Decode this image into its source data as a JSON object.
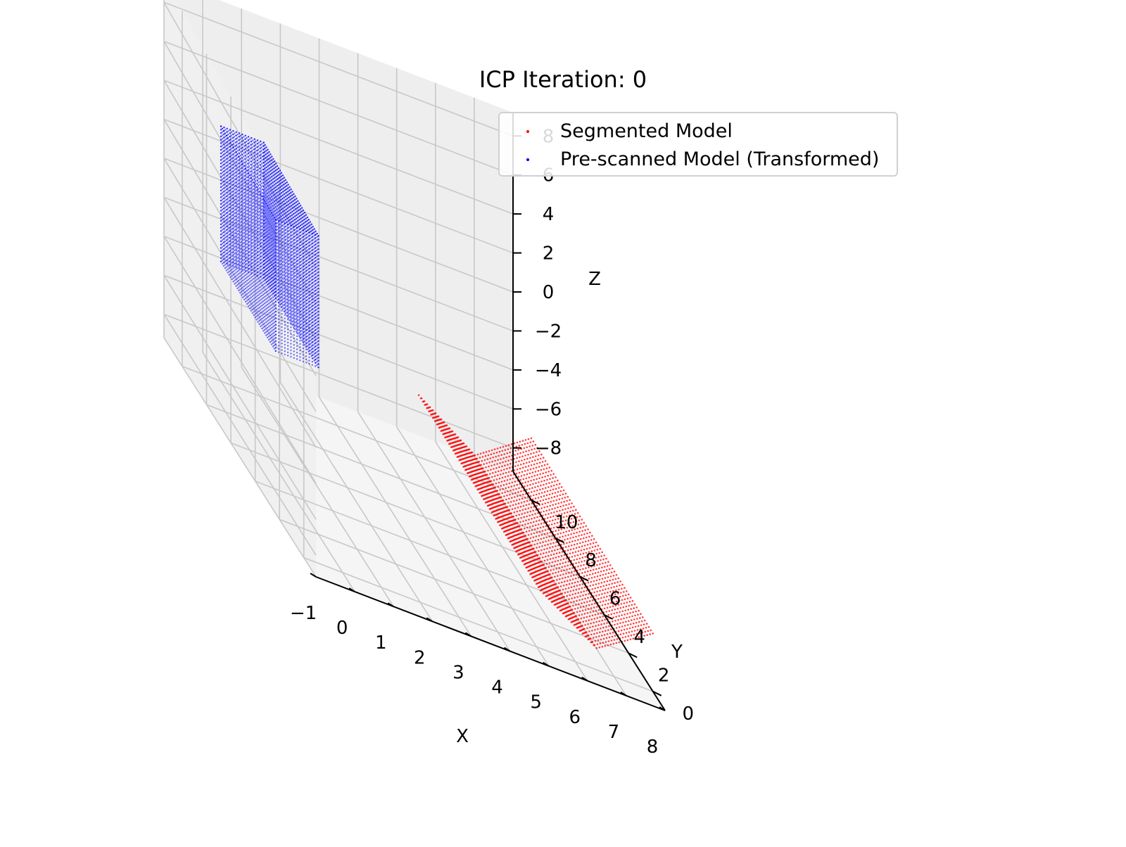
{
  "chart_data": {
    "type": "scatter",
    "projection": "3d",
    "title": "ICP Iteration: 0",
    "xlabel": "X",
    "ylabel": "Y",
    "zlabel": "Z",
    "xlim": [
      -1,
      8
    ],
    "ylim": [
      -1,
      11.5
    ],
    "zlim": [
      -9.2,
      9.2
    ],
    "xticks": [
      "−1",
      "0",
      "1",
      "2",
      "3",
      "4",
      "5",
      "6",
      "7",
      "8"
    ],
    "yticks": [
      "0",
      "2",
      "4",
      "6",
      "8",
      "10"
    ],
    "zticks": [
      "−8",
      "−6",
      "−4",
      "−2",
      "0",
      "2",
      "4",
      "6",
      "8"
    ],
    "grid": true,
    "legend_position": "top-right",
    "series": [
      {
        "name": "Segmented Model",
        "color": "#ff0000",
        "shape": "v-trough",
        "x_range": [
          5.1,
          8.0
        ],
        "y_range": [
          0.0,
          10.0
        ],
        "z_profile": {
          "x": [
            5.1,
            6.55,
            8.0
          ],
          "z": [
            -6.0,
            -8.0,
            -6.0
          ]
        },
        "grid_resolution": [
          40,
          60
        ]
      },
      {
        "name": "Pre-scanned Model (Transformed)",
        "color": "#0000ff",
        "shape": "box",
        "x_range": [
          0.0,
          1.1
        ],
        "y_range": [
          5.5,
          10.0
        ],
        "z_range": [
          -3.0,
          4.0
        ],
        "grid_resolution": [
          14,
          40,
          40
        ]
      }
    ]
  }
}
